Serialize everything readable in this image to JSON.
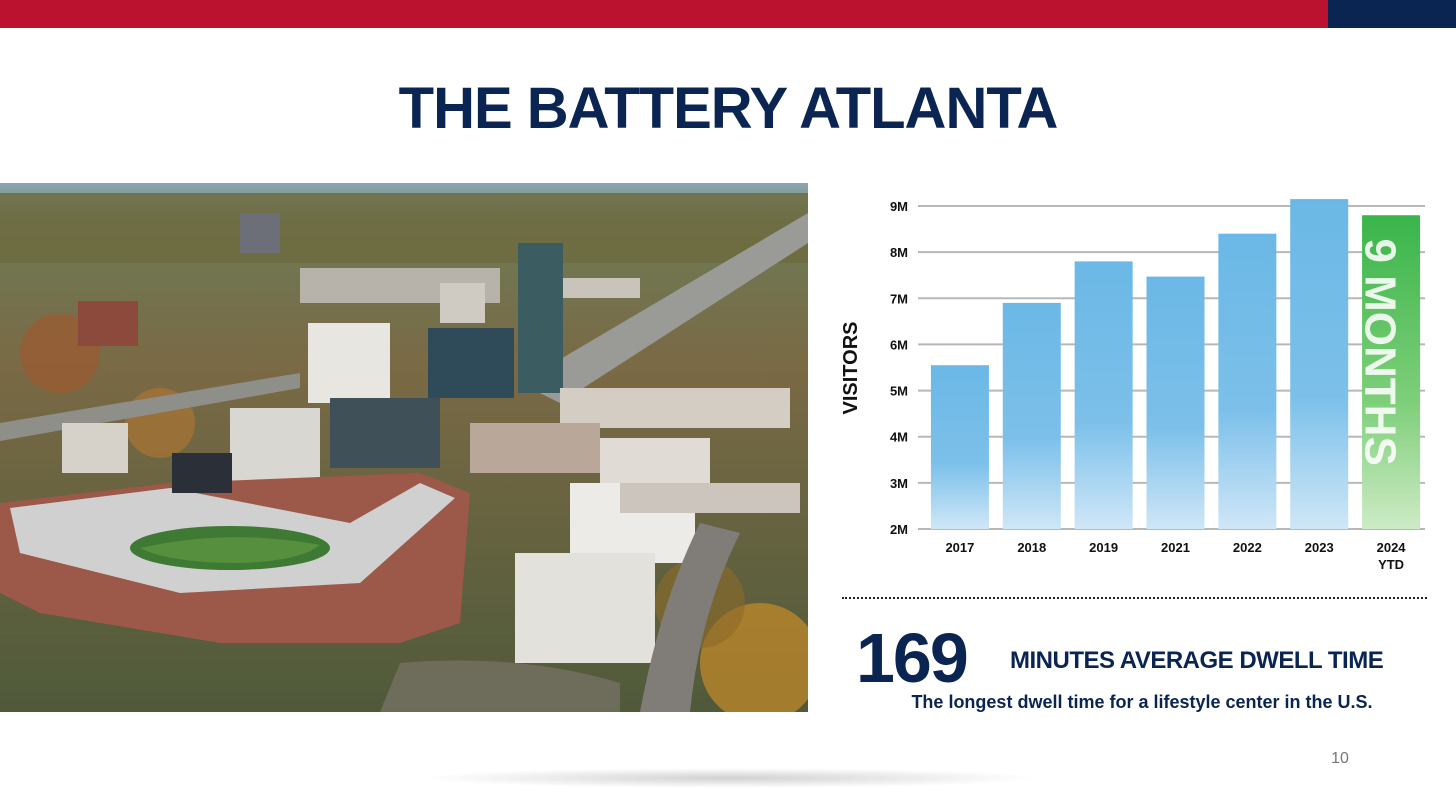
{
  "slide": {
    "title": "THE BATTERY ATLANTA",
    "page_number": "10",
    "colors": {
      "accent_red": "#bb1230",
      "navy": "#0b2552",
      "bar_blue": "#6bb8e6",
      "bar_green": "#3ab54a"
    }
  },
  "photo": {
    "icon": "aerial-stadium-photo"
  },
  "stat": {
    "number": "169",
    "label": "MINUTES AVERAGE DWELL TIME",
    "subtitle": "The longest dwell time for a lifestyle center in the U.S."
  },
  "chart_data": {
    "type": "bar",
    "title": "",
    "xlabel": "",
    "ylabel": "VISITORS",
    "categories": [
      "2017",
      "2018",
      "2019",
      "2021",
      "2022",
      "2023",
      "2024"
    ],
    "category_sublabels": [
      "",
      "",
      "",
      "",
      "",
      "",
      "YTD"
    ],
    "values": [
      5.55,
      6.9,
      7.8,
      7.47,
      8.4,
      9.15,
      8.8
    ],
    "ylim": [
      2,
      9
    ],
    "yticks": [
      2,
      3,
      4,
      5,
      6,
      7,
      8,
      9
    ],
    "ytick_labels": [
      "2M",
      "3M",
      "4M",
      "5M",
      "6M",
      "7M",
      "8M",
      "9M"
    ],
    "grid": true,
    "highlight": {
      "index": 6,
      "text": "9 MONTHS"
    }
  }
}
